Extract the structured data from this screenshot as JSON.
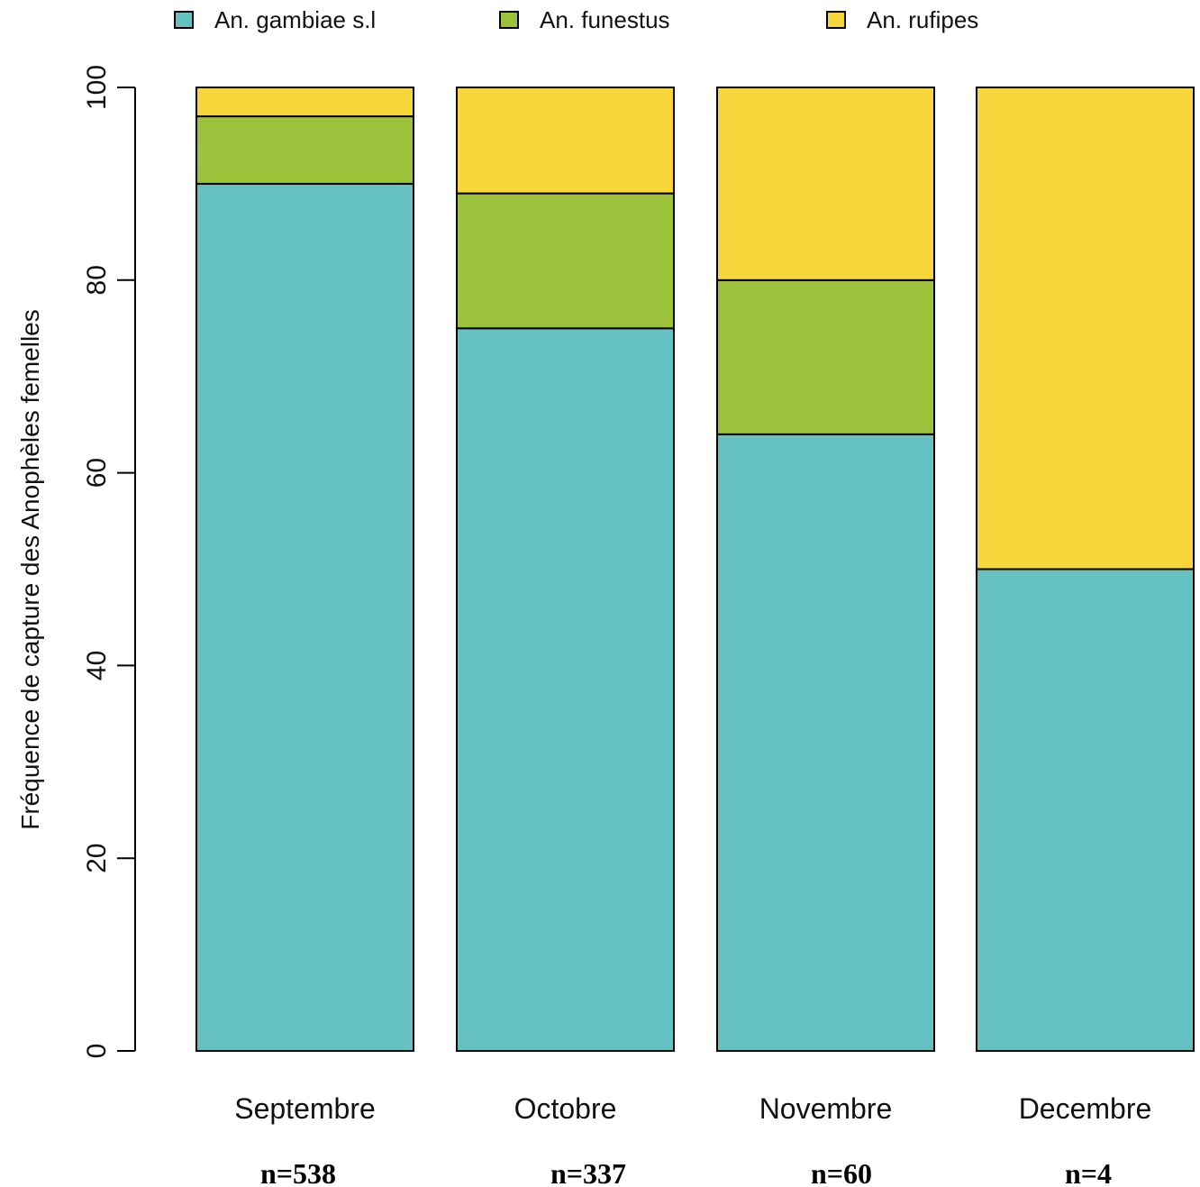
{
  "chart_data": {
    "type": "bar",
    "stacked": true,
    "categories": [
      "Septembre",
      "Octobre",
      "Novembre",
      "Decembre"
    ],
    "sample_sizes": [
      "n=538",
      "n=337",
      "n=60",
      "n=4"
    ],
    "series": [
      {
        "name": "An. gambiae s.l",
        "color": "#66c1c1",
        "values": [
          90,
          75,
          64,
          50
        ]
      },
      {
        "name": "An. funestus",
        "color": "#9cc23c",
        "values": [
          7,
          14,
          16,
          0
        ]
      },
      {
        "name": "An. rufipes",
        "color": "#f6d63a",
        "values": [
          3,
          11,
          20,
          50
        ]
      }
    ],
    "ylabel": "Fréquence de capture des Anophèles femelles",
    "yticks": [
      0,
      20,
      40,
      60,
      80,
      100
    ],
    "ylim": [
      0,
      100
    ],
    "legend_position": "top",
    "grid": false
  }
}
